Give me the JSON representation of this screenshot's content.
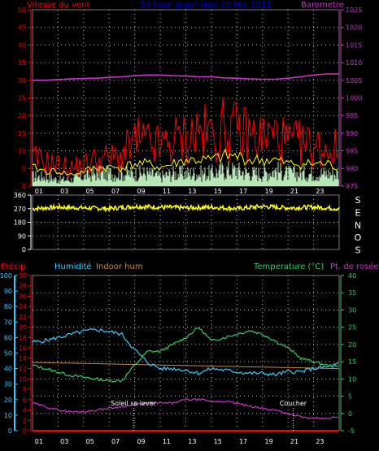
{
  "chart_data": [
    {
      "type": "line",
      "title": "24 hour graph day: 10 Mai 2011",
      "left_axis_label": "Vitesse du vent",
      "right_axis_label": "Barometre",
      "ylim_left": [
        0,
        50
      ],
      "left_ticks": [
        "0",
        "5",
        "10",
        "15",
        "20",
        "25",
        "30",
        "35",
        "40",
        "45",
        "50"
      ],
      "ylim_right": [
        975,
        1025
      ],
      "right_ticks": [
        "975",
        "980",
        "985",
        "990",
        "995",
        "1000",
        "1005",
        "1010",
        "1015",
        "1020",
        "1025"
      ],
      "x_ticks": [
        "01",
        "03",
        "05",
        "07",
        "09",
        "11",
        "13",
        "15",
        "17",
        "19",
        "21",
        "23"
      ],
      "x_range_hours": [
        0,
        24
      ],
      "grid": true,
      "colors": {
        "gust": "#ff0000",
        "avg_wind": "#ffff00",
        "wind_low": "#ccffcc",
        "baro": "#cc33cc",
        "left_axis": "#ff0000",
        "right_axis": "#cc33cc",
        "title": "#0000cc"
      },
      "series": [
        {
          "key": "gust",
          "x": [
            0,
            1,
            2,
            3,
            4,
            5,
            6,
            7,
            8,
            9,
            10,
            11,
            12,
            13,
            14,
            15,
            16,
            17,
            18,
            19,
            20,
            21,
            22,
            23,
            24
          ],
          "values": [
            9,
            8,
            7,
            6,
            7,
            9,
            9,
            10,
            15,
            14,
            13,
            15,
            16,
            18,
            17,
            19,
            18,
            17,
            16,
            17,
            14,
            14,
            13,
            13,
            12
          ]
        },
        {
          "key": "avg_wind",
          "x": [
            0,
            1,
            2,
            3,
            4,
            5,
            6,
            7,
            8,
            9,
            10,
            11,
            12,
            13,
            14,
            15,
            16,
            17,
            18,
            19,
            20,
            21,
            22,
            23,
            24
          ],
          "values": [
            5,
            4,
            4,
            3,
            4,
            5,
            5,
            5,
            6,
            6,
            5,
            6,
            7,
            7,
            7,
            8,
            8,
            7,
            7,
            7,
            6,
            6,
            6,
            6,
            5
          ]
        },
        {
          "key": "wind_low",
          "x": [
            0,
            1,
            2,
            3,
            4,
            5,
            6,
            7,
            8,
            9,
            10,
            11,
            12,
            13,
            14,
            15,
            16,
            17,
            18,
            19,
            20,
            21,
            22,
            23,
            24
          ],
          "values": [
            3,
            3,
            2,
            2,
            3,
            4,
            4,
            4,
            4,
            4,
            3,
            4,
            4,
            4,
            4,
            5,
            5,
            4,
            4,
            5,
            4,
            4,
            4,
            4,
            4
          ]
        },
        {
          "key": "baro",
          "x": [
            0,
            1,
            2,
            3,
            4,
            5,
            6,
            7,
            8,
            9,
            10,
            11,
            12,
            13,
            14,
            15,
            16,
            17,
            18,
            19,
            20,
            21,
            22,
            23,
            24
          ],
          "values": [
            1005,
            1005,
            1005.2,
            1005.4,
            1005.5,
            1005.6,
            1005.8,
            1006,
            1006.3,
            1006.5,
            1006.5,
            1006.3,
            1006.2,
            1006,
            1006,
            1005.7,
            1005.6,
            1005.4,
            1005.3,
            1005.3,
            1005.6,
            1006,
            1006.5,
            1006.8,
            1006.8
          ]
        }
      ]
    },
    {
      "type": "line",
      "right_tick_labels": [
        "S",
        "E",
        "N",
        "O",
        "S"
      ],
      "ylim": [
        0,
        360
      ],
      "ticks": [
        "0",
        "90",
        "180",
        "270",
        "360"
      ],
      "x_ticks": [
        "01",
        "03",
        "05",
        "07",
        "09",
        "11",
        "13",
        "15",
        "17",
        "19",
        "21",
        "23"
      ],
      "x_range_hours": [
        0,
        24
      ],
      "grid": true,
      "colors": {
        "direction": "#ffff00",
        "axis": "#ffffff"
      },
      "series": [
        {
          "key": "direction",
          "x": [
            0,
            2,
            4,
            6,
            8,
            10,
            12,
            14,
            16,
            18,
            20,
            22,
            24
          ],
          "values": [
            270,
            280,
            275,
            270,
            285,
            280,
            275,
            280,
            270,
            285,
            275,
            280,
            270
          ]
        }
      ]
    },
    {
      "type": "line",
      "labels": {
        "precip": "Précip.",
        "humidity": "Humidité",
        "indoor_hum": "Indoor hum",
        "temperature": "Temperature (°C)",
        "dewpoint": "Pt. de rosée"
      },
      "ylim_humidity": [
        0,
        100
      ],
      "humidity_ticks": [
        "0",
        "10",
        "20",
        "30",
        "40",
        "50",
        "60",
        "70",
        "80",
        "90",
        "100"
      ],
      "ylim_precip": [
        0,
        30
      ],
      "precip_ticks": [
        "0",
        "2",
        "4",
        "6",
        "8",
        "10",
        "12",
        "14",
        "16",
        "18",
        "20",
        "22",
        "24",
        "26",
        "28",
        "30"
      ],
      "ylim_temp": [
        -5,
        40
      ],
      "temp_ticks": [
        "-5",
        "0",
        "5",
        "10",
        "15",
        "20",
        "25",
        "30",
        "35",
        "40"
      ],
      "x_ticks": [
        "01",
        "03",
        "05",
        "07",
        "09",
        "11",
        "13",
        "15",
        "17",
        "19",
        "21",
        "23"
      ],
      "x_range_hours": [
        0,
        24
      ],
      "grid": true,
      "annotations": [
        {
          "text": "Soleil se lever",
          "x": 7.9
        },
        {
          "text": "Coucher",
          "x": 20.4
        }
      ],
      "colors": {
        "precip": "#ff0000",
        "humidity": "#33ccff",
        "indoor_hum": "#c08a5a",
        "temperature": "#33cc66",
        "dewpoint": "#cc33cc",
        "precip_axis": "#ff0000",
        "humidity_axis": "#33ccff",
        "temp_axis": "#33cc66"
      },
      "series": [
        {
          "key": "precip",
          "x": [
            0,
            24
          ],
          "values": [
            0,
            0
          ]
        },
        {
          "key": "humidity",
          "x": [
            0,
            1,
            2,
            3,
            4,
            5,
            6,
            7,
            8,
            9,
            10,
            11,
            12,
            13,
            14,
            15,
            16,
            17,
            18,
            19,
            20,
            21,
            22,
            23,
            24
          ],
          "values": [
            57,
            58,
            60,
            62,
            64,
            65,
            64,
            62,
            52,
            44,
            40,
            40,
            39,
            37,
            40,
            39,
            38,
            37,
            37,
            36,
            38,
            38,
            40,
            41,
            43
          ]
        },
        {
          "key": "indoor_hum",
          "x": [
            0,
            24
          ],
          "values": [
            44,
            40
          ]
        },
        {
          "key": "temperature",
          "x": [
            0,
            1,
            2,
            3,
            4,
            5,
            6,
            7,
            8,
            9,
            10,
            11,
            12,
            13,
            14,
            15,
            16,
            17,
            18,
            19,
            20,
            21,
            22,
            23,
            24
          ],
          "values": [
            14,
            13,
            12,
            11,
            10.5,
            10,
            9.5,
            9.5,
            14,
            18,
            18,
            20,
            22,
            25,
            21,
            22,
            23,
            24,
            23,
            21,
            19,
            16,
            15,
            14,
            13.5
          ]
        },
        {
          "key": "dewpoint",
          "x": [
            0,
            1,
            2,
            3,
            4,
            5,
            6,
            7,
            8,
            9,
            10,
            11,
            12,
            13,
            14,
            15,
            16,
            17,
            18,
            19,
            20,
            21,
            22,
            23,
            24
          ],
          "values": [
            3,
            2,
            1,
            0.5,
            0.5,
            1,
            1.5,
            2,
            2.5,
            3,
            3,
            3,
            4,
            4,
            3.5,
            3.5,
            3,
            2,
            1.5,
            1,
            0,
            -1,
            -1.5,
            -1.5,
            -1
          ]
        }
      ]
    }
  ]
}
